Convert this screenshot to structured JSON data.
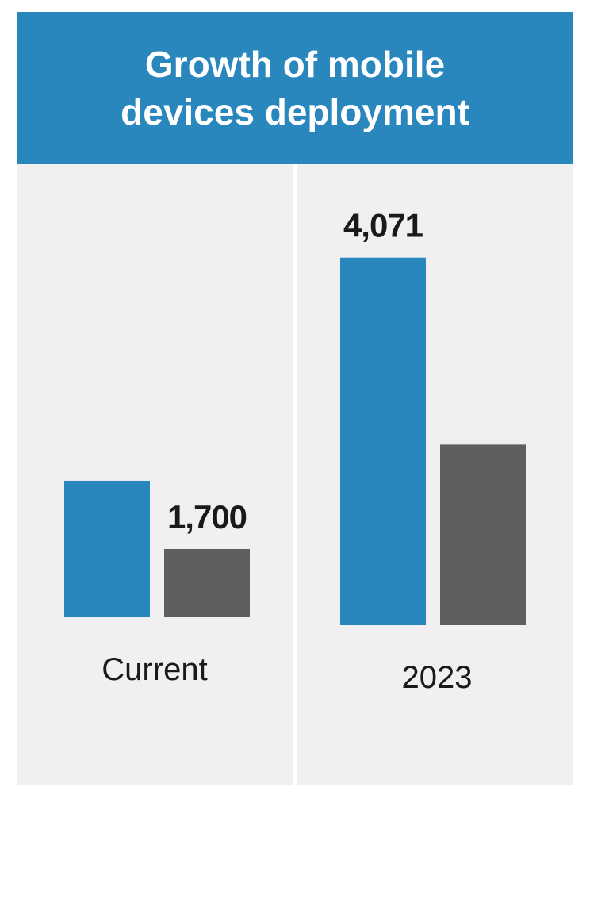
{
  "title": "Growth of mobile devices deployment",
  "chart_data": [
    {
      "type": "bar",
      "category": "Current",
      "values": [
        3400,
        1700
      ],
      "value_labels": [
        null,
        "1,700"
      ],
      "colors": [
        "#2a87bd",
        "#5f5f5e"
      ],
      "ylim": [
        0,
        10000
      ]
    },
    {
      "type": "bar",
      "category": "2023",
      "values": [
        4071,
        2000
      ],
      "value_labels": [
        "4,071",
        null
      ],
      "colors": [
        "#2a87bd",
        "#5f5f5e"
      ],
      "ylim": [
        0,
        5000
      ]
    }
  ]
}
